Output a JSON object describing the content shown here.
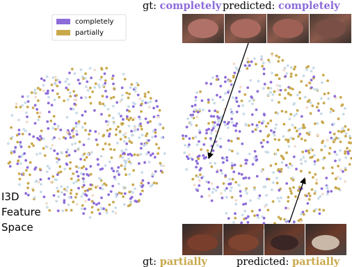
{
  "legend": {
    "items": [
      {
        "label": "completely",
        "color": "#8d6cd9"
      },
      {
        "label": "partially",
        "color": "#c9a84c"
      }
    ]
  },
  "top_caption": {
    "gt_prefix": "gt:",
    "gt_label": "completely",
    "pred_prefix": "predicted:",
    "pred_label": "completely",
    "color": "#8d6cd9"
  },
  "bottom_caption": {
    "gt_prefix": "gt:",
    "gt_label": "partially",
    "pred_prefix": "predicted:",
    "pred_label": "partially",
    "color": "#c9a84c"
  },
  "side_label": [
    "I3D",
    "Feature",
    "Space"
  ]
}
